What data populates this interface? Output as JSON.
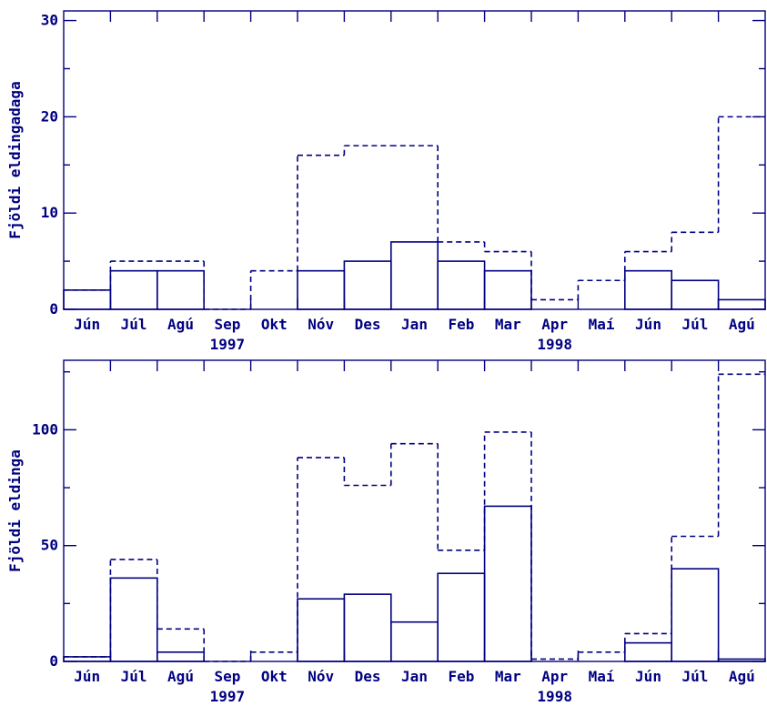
{
  "chart_data": [
    {
      "type": "bar",
      "ylabel": "Fjöldi eldingadaga",
      "categories": [
        "Jún",
        "Júl",
        "Agú",
        "Sep",
        "Okt",
        "Nóv",
        "Des",
        "Jan",
        "Feb",
        "Mar",
        "Apr",
        "Maí",
        "Jún",
        "Júl",
        "Agú"
      ],
      "year_labels": [
        {
          "label": "1997",
          "at_category": 3
        },
        {
          "label": "1998",
          "at_category": 10
        }
      ],
      "ylim": [
        0,
        31
      ],
      "yticks": [
        0,
        10,
        20,
        30
      ],
      "series": [
        {
          "style": "solid",
          "values": [
            2,
            4,
            4,
            0,
            0,
            4,
            5,
            7,
            5,
            4,
            0,
            0,
            4,
            3,
            1
          ]
        },
        {
          "style": "dashed",
          "values": [
            2,
            5,
            5,
            0,
            4,
            16,
            17,
            17,
            7,
            6,
            1,
            3,
            6,
            8,
            20
          ]
        }
      ]
    },
    {
      "type": "bar",
      "ylabel": "Fjöldi eldinga",
      "categories": [
        "Jún",
        "Júl",
        "Agú",
        "Sep",
        "Okt",
        "Nóv",
        "Des",
        "Jan",
        "Feb",
        "Mar",
        "Apr",
        "Maí",
        "Jún",
        "Júl",
        "Agú"
      ],
      "year_labels": [
        {
          "label": "1997",
          "at_category": 3
        },
        {
          "label": "1998",
          "at_category": 10
        }
      ],
      "ylim": [
        0,
        130
      ],
      "yticks": [
        0,
        50,
        100
      ],
      "series": [
        {
          "style": "solid",
          "values": [
            2,
            36,
            4,
            0,
            0,
            27,
            29,
            17,
            38,
            67,
            0,
            0,
            8,
            40,
            1
          ]
        },
        {
          "style": "dashed",
          "values": [
            2,
            44,
            14,
            0,
            4,
            88,
            76,
            94,
            48,
            99,
            1,
            4,
            12,
            54,
            124
          ]
        }
      ]
    }
  ]
}
